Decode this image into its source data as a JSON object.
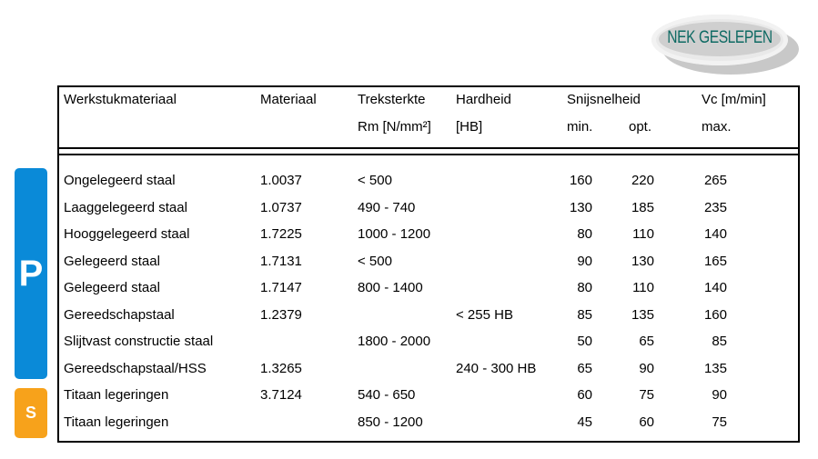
{
  "logo": "NEK GESLEPEN",
  "badges": {
    "p": "P",
    "s": "S",
    "p_color": "#0a8ad8",
    "s_color": "#f7a21b"
  },
  "header": {
    "material": "Werkstukmateriaal",
    "nr": "Materiaal",
    "strength1": "Treksterkte",
    "strength2": "Rm [N/mm²]",
    "hardness1": "Hardheid",
    "hardness2": "[HB]",
    "speed": "Snijsnelheid",
    "vc": "Vc [m/min]",
    "min": "min.",
    "opt": "opt.",
    "max": "max."
  },
  "rows": [
    {
      "name": "Ongelegeerd staal",
      "nr": "1.0037",
      "rm": "< 500",
      "hb": "",
      "min": "160",
      "opt": "220",
      "max": "265"
    },
    {
      "name": "Laaggelegeerd staal",
      "nr": "1.0737",
      "rm": "490 - 740",
      "hb": "",
      "min": "130",
      "opt": "185",
      "max": "235"
    },
    {
      "name": "Hooggelegeerd staal",
      "nr": "1.7225",
      "rm": "1000 - 1200",
      "hb": "",
      "min": "80",
      "opt": "110",
      "max": "140"
    },
    {
      "name": "Gelegeerd staal",
      "nr": "1.7131",
      "rm": "<  500",
      "hb": "",
      "min": "90",
      "opt": "130",
      "max": "165"
    },
    {
      "name": "Gelegeerd staal",
      "nr": "1.7147",
      "rm": "800 - 1400",
      "hb": "",
      "min": "80",
      "opt": "110",
      "max": "140"
    },
    {
      "name": "Gereedschapstaal",
      "nr": "1.2379",
      "rm": "",
      "hb": "< 255 HB",
      "min": "85",
      "opt": "135",
      "max": "160"
    },
    {
      "name": "Slijtvast constructie staal",
      "nr": "",
      "rm": "1800 - 2000",
      "hb": "",
      "min": "50",
      "opt": "65",
      "max": "85"
    },
    {
      "name": "Gereedschapstaal/HSS",
      "nr": "1.3265",
      "rm": "",
      "hb": "240 - 300 HB",
      "min": "65",
      "opt": "90",
      "max": "135"
    },
    {
      "name": "Titaan legeringen",
      "nr": "3.7124",
      "rm": "540 - 650",
      "hb": "",
      "min": "60",
      "opt": "75",
      "max": "90"
    },
    {
      "name": "Titaan legeringen",
      "nr": "",
      "rm": "850 - 1200",
      "hb": "",
      "min": "45",
      "opt": "60",
      "max": "75"
    }
  ]
}
